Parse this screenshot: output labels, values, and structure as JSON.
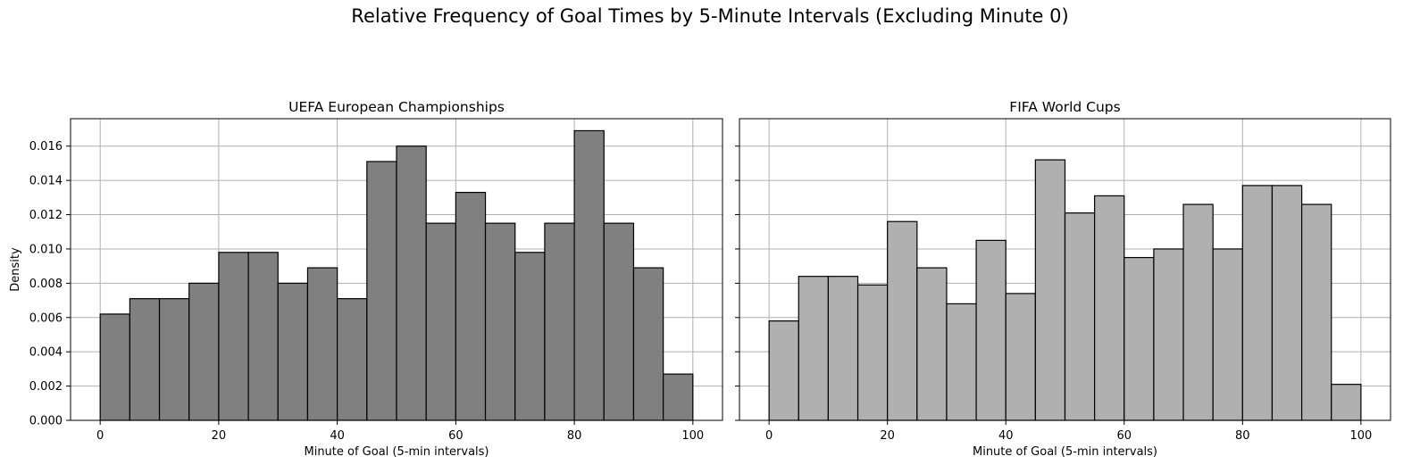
{
  "suptitle": "Relative Frequency of Goal Times by 5-Minute Intervals (Excluding Minute 0)",
  "chart_data": [
    {
      "type": "bar",
      "title": "UEFA European Championships",
      "xlabel": "Minute of Goal (5-min intervals)",
      "ylabel": "Density",
      "xlim": [
        -5,
        105
      ],
      "ylim": [
        0,
        0.0176
      ],
      "xticks": [
        0,
        20,
        40,
        60,
        80,
        100
      ],
      "yticks": [
        "0.000",
        "0.002",
        "0.004",
        "0.006",
        "0.008",
        "0.010",
        "0.012",
        "0.014",
        "0.016"
      ],
      "grid": true,
      "bar_color": "#808080",
      "bin_edges": [
        0,
        5,
        10,
        15,
        20,
        25,
        30,
        35,
        40,
        45,
        50,
        55,
        60,
        65,
        70,
        75,
        80,
        85,
        90,
        95,
        100
      ],
      "values": [
        0.0062,
        0.0071,
        0.0071,
        0.008,
        0.0098,
        0.0098,
        0.008,
        0.0089,
        0.0071,
        0.0151,
        0.016,
        0.0115,
        0.0133,
        0.0115,
        0.0098,
        0.0115,
        0.0169,
        0.0115,
        0.0089,
        0.0027
      ]
    },
    {
      "type": "bar",
      "title": "FIFA World Cups",
      "xlabel": "Minute of Goal (5-min intervals)",
      "ylabel": "",
      "xlim": [
        -5,
        105
      ],
      "ylim": [
        0,
        0.0176
      ],
      "xticks": [
        0,
        20,
        40,
        60,
        80,
        100
      ],
      "yticks": [],
      "grid": true,
      "bar_color": "#b0b0b0",
      "bin_edges": [
        0,
        5,
        10,
        15,
        20,
        25,
        30,
        35,
        40,
        45,
        50,
        55,
        60,
        65,
        70,
        75,
        80,
        85,
        90,
        95,
        100
      ],
      "values": [
        0.0058,
        0.0084,
        0.0084,
        0.0079,
        0.0116,
        0.0089,
        0.0068,
        0.0105,
        0.0074,
        0.0152,
        0.0121,
        0.0131,
        0.0095,
        0.01,
        0.0126,
        0.01,
        0.0137,
        0.0137,
        0.0126,
        0.0021
      ]
    }
  ]
}
